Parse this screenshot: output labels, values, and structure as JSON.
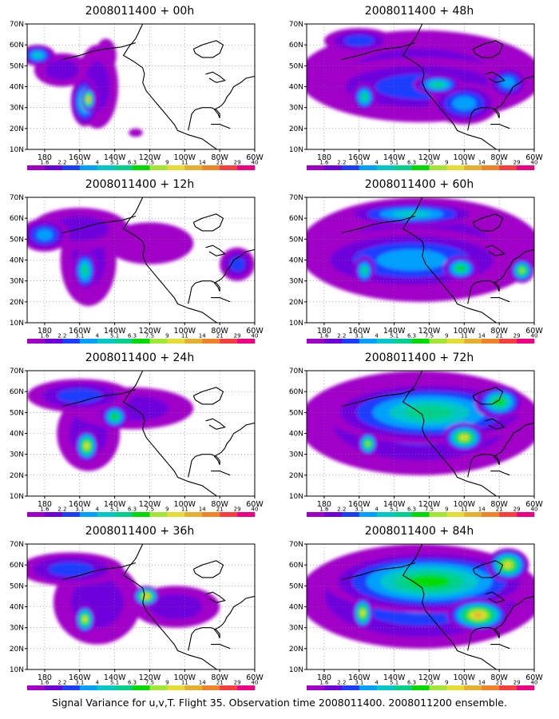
{
  "caption": "Signal Variance for u,v,T. Flight 35. Observation time 2008011400. 2008011200 ensemble.",
  "axes": {
    "lon_ticks": [
      "180",
      "160W",
      "140W",
      "120W",
      "100W",
      "80W",
      "60W"
    ],
    "lat_ticks": [
      "70N",
      "60N",
      "50N",
      "40N",
      "30N",
      "20N",
      "10N"
    ],
    "lon_range": [
      170,
      300
    ],
    "lat_range": [
      10,
      70
    ]
  },
  "colorbar": {
    "labels": [
      "1.6",
      "2.2",
      "3.1",
      "4",
      "5.1",
      "6.3",
      "7.5",
      "9",
      "11",
      "14",
      "21",
      "29",
      "40"
    ],
    "colors": [
      "#ffffff",
      "#a000c8",
      "#6e00dc",
      "#1e3cff",
      "#00a0ff",
      "#00c8c8",
      "#00d28c",
      "#00dc00",
      "#a0e632",
      "#e6dc32",
      "#e6af2d",
      "#f08228",
      "#fa3c3c",
      "#f00082"
    ]
  },
  "panels": [
    {
      "title": "2008011400 + 00h",
      "blobs": [
        {
          "lon": 203,
          "lat": 33,
          "rx": 8,
          "ry": 12,
          "lvl": 6
        },
        {
          "lon": 205,
          "lat": 34,
          "rx": 4,
          "ry": 6,
          "lvl": 10
        },
        {
          "lon": 176,
          "lat": 55,
          "rx": 10,
          "ry": 5,
          "lvl": 5
        },
        {
          "lon": 190,
          "lat": 48,
          "rx": 16,
          "ry": 8,
          "lvl": 2
        },
        {
          "lon": 210,
          "lat": 40,
          "rx": 12,
          "ry": 20,
          "lvl": 2
        },
        {
          "lon": 215,
          "lat": 55,
          "rx": 6,
          "ry": 8,
          "lvl": 1
        },
        {
          "lon": 232,
          "lat": 18,
          "rx": 4,
          "ry": 2,
          "lvl": 1
        }
      ]
    },
    {
      "title": "2008011400 + 48h",
      "blobs": [
        {
          "lon": 235,
          "lat": 45,
          "rx": 70,
          "ry": 22,
          "lvl": 2
        },
        {
          "lon": 235,
          "lat": 40,
          "rx": 60,
          "ry": 14,
          "lvl": 3
        },
        {
          "lon": 203,
          "lat": 35,
          "rx": 7,
          "ry": 7,
          "lvl": 6
        },
        {
          "lon": 245,
          "lat": 41,
          "rx": 14,
          "ry": 5,
          "lvl": 6
        },
        {
          "lon": 260,
          "lat": 32,
          "rx": 20,
          "ry": 10,
          "lvl": 4
        },
        {
          "lon": 285,
          "lat": 42,
          "rx": 12,
          "ry": 8,
          "lvl": 4
        },
        {
          "lon": 200,
          "lat": 62,
          "rx": 20,
          "ry": 6,
          "lvl": 3
        }
      ]
    },
    {
      "title": "2008011400 + 12h",
      "blobs": [
        {
          "lon": 205,
          "lat": 40,
          "rx": 16,
          "ry": 22,
          "lvl": 2
        },
        {
          "lon": 203,
          "lat": 35,
          "rx": 7,
          "ry": 10,
          "lvl": 6
        },
        {
          "lon": 180,
          "lat": 52,
          "rx": 14,
          "ry": 8,
          "lvl": 4
        },
        {
          "lon": 200,
          "lat": 55,
          "rx": 28,
          "ry": 10,
          "lvl": 2
        },
        {
          "lon": 290,
          "lat": 38,
          "rx": 10,
          "ry": 8,
          "lvl": 3
        },
        {
          "lon": 240,
          "lat": 48,
          "rx": 25,
          "ry": 10,
          "lvl": 1
        }
      ]
    },
    {
      "title": "2008011400 + 60h",
      "blobs": [
        {
          "lon": 235,
          "lat": 45,
          "rx": 70,
          "ry": 25,
          "lvl": 2
        },
        {
          "lon": 230,
          "lat": 40,
          "rx": 60,
          "ry": 15,
          "lvl": 4
        },
        {
          "lon": 203,
          "lat": 35,
          "rx": 6,
          "ry": 7,
          "lvl": 6
        },
        {
          "lon": 258,
          "lat": 36,
          "rx": 10,
          "ry": 6,
          "lvl": 7
        },
        {
          "lon": 293,
          "lat": 35,
          "rx": 7,
          "ry": 6,
          "lvl": 8
        },
        {
          "lon": 230,
          "lat": 62,
          "rx": 40,
          "ry": 6,
          "lvl": 5
        }
      ]
    },
    {
      "title": "2008011400 + 24h",
      "blobs": [
        {
          "lon": 205,
          "lat": 40,
          "rx": 18,
          "ry": 18,
          "lvl": 2
        },
        {
          "lon": 204,
          "lat": 34,
          "rx": 7,
          "ry": 8,
          "lvl": 9
        },
        {
          "lon": 220,
          "lat": 48,
          "rx": 8,
          "ry": 6,
          "lvl": 7
        },
        {
          "lon": 200,
          "lat": 58,
          "rx": 30,
          "ry": 8,
          "lvl": 3
        },
        {
          "lon": 230,
          "lat": 52,
          "rx": 35,
          "ry": 10,
          "lvl": 2
        }
      ]
    },
    {
      "title": "2008011400 + 72h",
      "blobs": [
        {
          "lon": 235,
          "lat": 45,
          "rx": 70,
          "ry": 25,
          "lvl": 3
        },
        {
          "lon": 240,
          "lat": 50,
          "rx": 60,
          "ry": 15,
          "lvl": 6
        },
        {
          "lon": 205,
          "lat": 35,
          "rx": 6,
          "ry": 6,
          "lvl": 8
        },
        {
          "lon": 260,
          "lat": 38,
          "rx": 12,
          "ry": 7,
          "lvl": 9
        },
        {
          "lon": 280,
          "lat": 55,
          "rx": 14,
          "ry": 8,
          "lvl": 7
        }
      ]
    },
    {
      "title": "2008011400 + 36h",
      "blobs": [
        {
          "lon": 210,
          "lat": 42,
          "rx": 25,
          "ry": 20,
          "lvl": 2
        },
        {
          "lon": 203,
          "lat": 34,
          "rx": 6,
          "ry": 7,
          "lvl": 9
        },
        {
          "lon": 238,
          "lat": 45,
          "rx": 8,
          "ry": 5,
          "lvl": 10
        },
        {
          "lon": 195,
          "lat": 58,
          "rx": 30,
          "ry": 8,
          "lvl": 3
        },
        {
          "lon": 255,
          "lat": 40,
          "rx": 25,
          "ry": 10,
          "lvl": 2
        }
      ]
    },
    {
      "title": "2008011400 + 84h",
      "blobs": [
        {
          "lon": 235,
          "lat": 45,
          "rx": 70,
          "ry": 25,
          "lvl": 4
        },
        {
          "lon": 240,
          "lat": 52,
          "rx": 60,
          "ry": 15,
          "lvl": 7
        },
        {
          "lon": 202,
          "lat": 37,
          "rx": 6,
          "ry": 8,
          "lvl": 9
        },
        {
          "lon": 268,
          "lat": 36,
          "rx": 18,
          "ry": 8,
          "lvl": 10
        },
        {
          "lon": 285,
          "lat": 60,
          "rx": 12,
          "ry": 8,
          "lvl": 9
        }
      ]
    }
  ]
}
